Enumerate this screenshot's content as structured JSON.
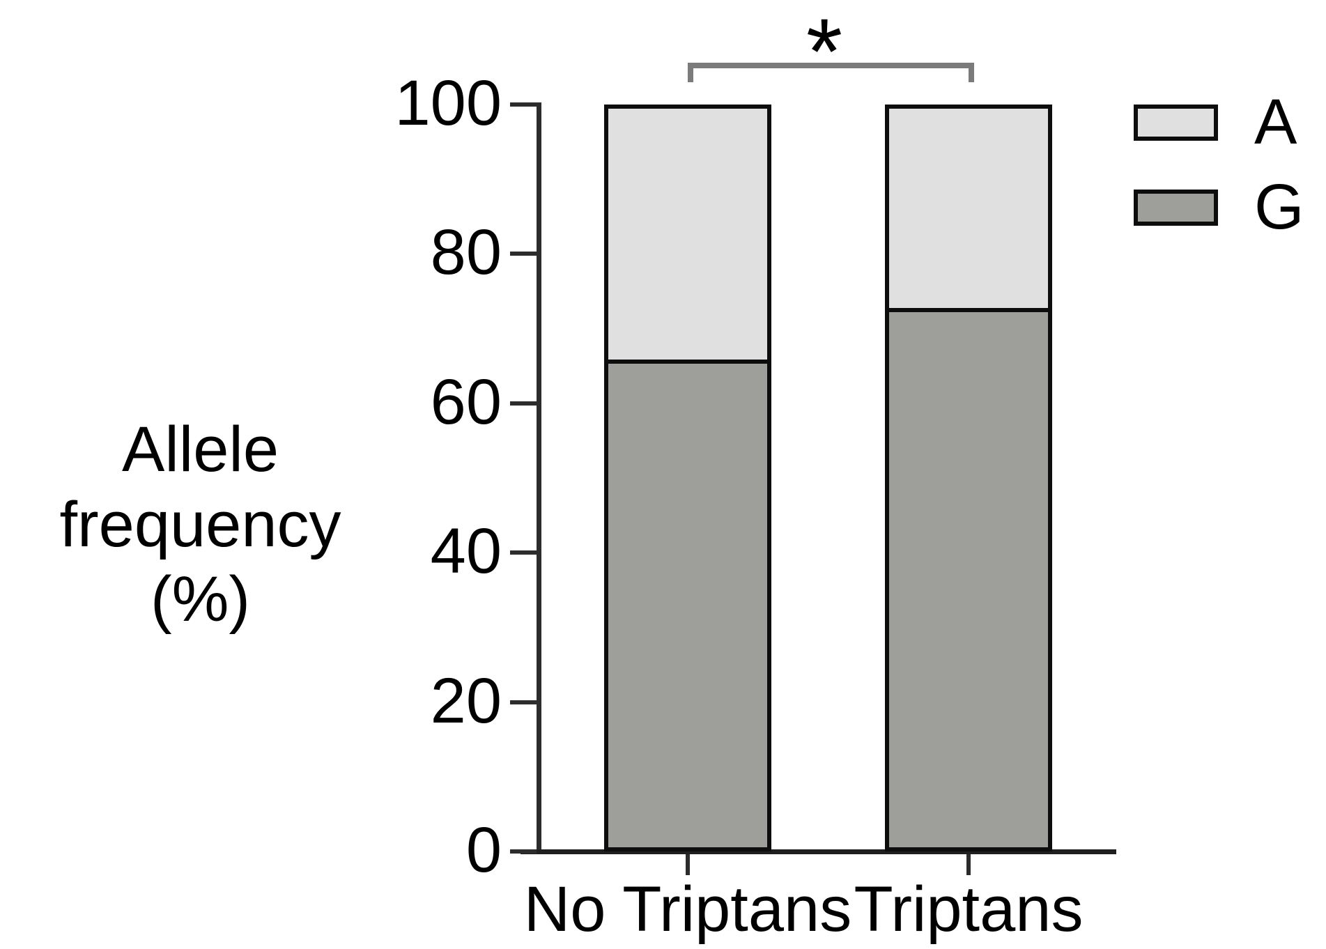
{
  "figure": {
    "background": "#ffffff",
    "text_color": "#000000",
    "axis_color": "#2c2c2c"
  },
  "chart_data": {
    "type": "bar",
    "stacked": true,
    "title": "",
    "xlabel": "",
    "ylabel": "Allele frequency (%)",
    "ylabel_lines": [
      "Allele frequency",
      "(%)"
    ],
    "ylim": [
      0,
      100
    ],
    "yticks": [
      0,
      20,
      40,
      60,
      80,
      100
    ],
    "grid": false,
    "categories": [
      "No Triptans",
      "Triptans"
    ],
    "series": [
      {
        "name": "A",
        "color": "#e0e0e0",
        "values": [
          34,
          27
        ]
      },
      {
        "name": "G",
        "color": "#9e9e9b",
        "values": [
          66,
          73
        ]
      }
    ],
    "bar_border_color": "#0d0d0d",
    "legend": {
      "position": "top-right",
      "entries": [
        "A",
        "G"
      ]
    },
    "annotations": {
      "significance": {
        "symbol": "*",
        "from": "No Triptans",
        "to": "Triptans",
        "bracket_color": "#7b7b7b"
      }
    }
  }
}
